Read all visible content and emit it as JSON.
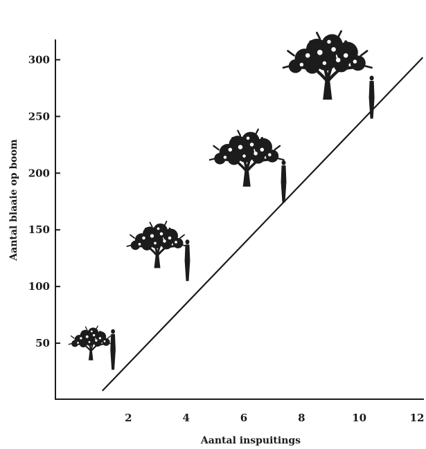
{
  "chart_data": {
    "type": "line",
    "title": "",
    "xlabel": "Aantal inspuitings",
    "ylabel": "Aantal blaaie op boom",
    "xlim": [
      0,
      12
    ],
    "ylim": [
      0,
      310
    ],
    "x_ticks": [
      "2",
      "4",
      "6",
      "8",
      "10",
      "12"
    ],
    "y_ticks": [
      "50",
      "100",
      "150",
      "200",
      "250",
      "300"
    ],
    "series": [
      {
        "x": [
          1.1,
          12.2
        ],
        "y": [
          8,
          302
        ]
      }
    ],
    "illustrations": [
      {
        "x": 0.7,
        "y": 45,
        "size": "small",
        "icon": "tree-icon"
      },
      {
        "x": 3.0,
        "y": 130,
        "size": "medium",
        "icon": "tree-icon"
      },
      {
        "x": 6.1,
        "y": 205,
        "size": "large",
        "icon": "tree-icon"
      },
      {
        "x": 8.9,
        "y": 285,
        "size": "xlarge",
        "icon": "tree-icon"
      }
    ],
    "grid": false,
    "legend": "none"
  }
}
